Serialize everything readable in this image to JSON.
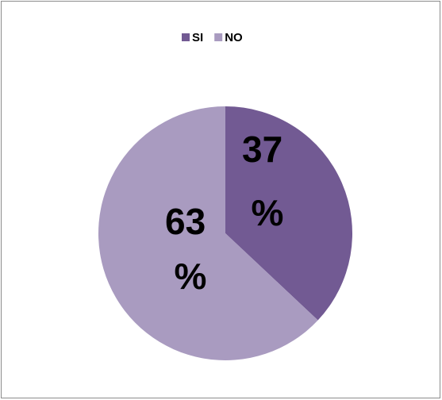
{
  "chart_data": {
    "type": "pie",
    "categories": [
      "SI",
      "NO"
    ],
    "values": [
      37,
      63
    ],
    "value_labels": [
      "37 %",
      "63 %"
    ],
    "colors": [
      "#725a93",
      "#a99bc0"
    ],
    "legend": "top"
  }
}
